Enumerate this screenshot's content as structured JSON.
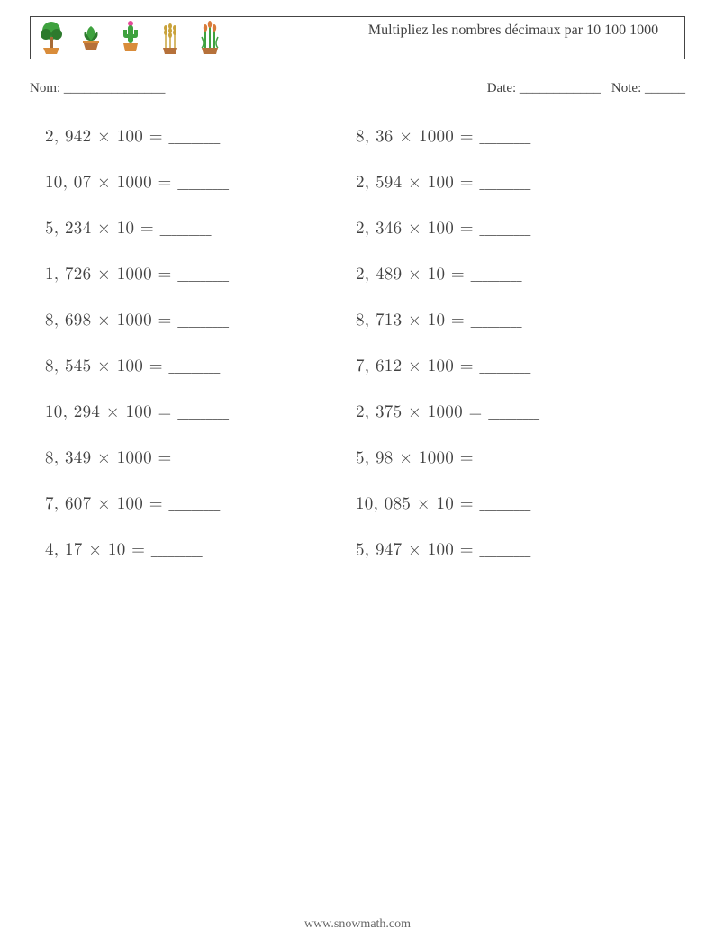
{
  "header": {
    "title": "Multipliez les nombres décimaux par 10 100 1000"
  },
  "meta": {
    "name_label": "Nom:",
    "name_blank": "_______________",
    "date_label": "Date:",
    "date_blank": "____________",
    "note_label": "Note:",
    "note_blank": "______"
  },
  "worksheet": {
    "type": "table",
    "columns": 2,
    "font_size_pt": 19,
    "text_color": "#414141",
    "answer_blank": "_________",
    "rows": [
      {
        "left": "2, 942 × 100 =",
        "right": "8, 36 × 1000 ="
      },
      {
        "left": "10, 07 × 1000 =",
        "right": "2, 594 × 100 ="
      },
      {
        "left": "5, 234 × 10 =",
        "right": "2, 346 × 100 ="
      },
      {
        "left": "1, 726 × 1000 =",
        "right": "2, 489 × 10 ="
      },
      {
        "left": "8, 698 × 1000 =",
        "right": "8, 713 × 10 ="
      },
      {
        "left": "8, 545 × 100 =",
        "right": "7, 612 × 100 ="
      },
      {
        "left": "10, 294 × 100 =",
        "right": "2, 375 × 1000 ="
      },
      {
        "left": "8, 349 × 1000 =",
        "right": "5, 98 × 1000 ="
      },
      {
        "left": "7, 607 × 100 =",
        "right": "10, 085 × 10 ="
      },
      {
        "left": "4, 17 × 10 =",
        "right": "5, 947 × 100 ="
      }
    ]
  },
  "footer": {
    "url": "www.snowmath.com"
  },
  "icons": {
    "names": [
      "tree-icon",
      "succulent-icon",
      "cactus-icon",
      "wheat-icon",
      "reeds-icon"
    ],
    "colors": {
      "green_leaf": "#3fa23f",
      "dark_green": "#2d7a2d",
      "trunk": "#a86b36",
      "pot_orange": "#d98c3a",
      "pot_brown": "#b6713a",
      "wheat": "#c9a23a",
      "flower": "#d97b3a"
    }
  },
  "colors": {
    "background": "#ffffff",
    "border": "#444444",
    "text": "#414141",
    "footer": "#666666"
  }
}
